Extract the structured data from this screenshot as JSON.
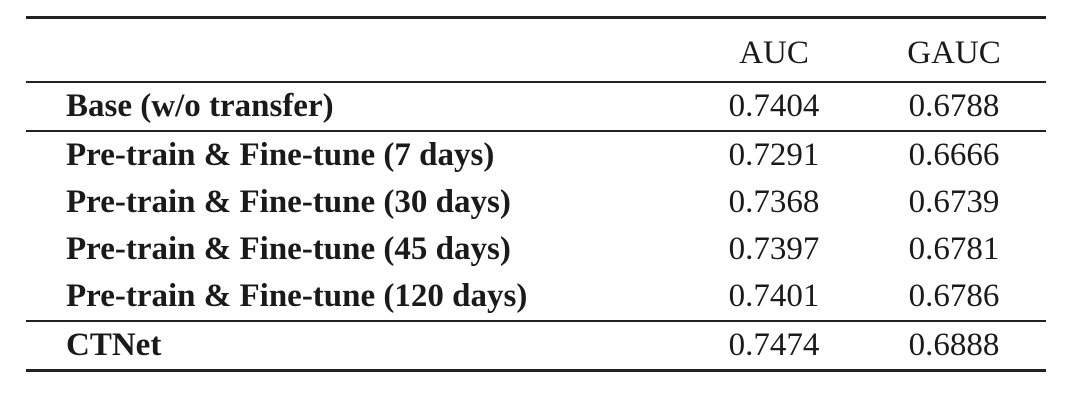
{
  "table": {
    "headers": [
      "",
      "AUC",
      "GAUC"
    ],
    "groups": [
      {
        "rows": [
          {
            "method": "Base (w/o transfer)",
            "auc": "0.7404",
            "gauc": "0.6788"
          }
        ]
      },
      {
        "rows": [
          {
            "method": "Pre-train & Fine-tune (7 days)",
            "auc": "0.7291",
            "gauc": "0.6666"
          },
          {
            "method": "Pre-train & Fine-tune (30 days)",
            "auc": "0.7368",
            "gauc": "0.6739"
          },
          {
            "method": "Pre-train & Fine-tune (45 days)",
            "auc": "0.7397",
            "gauc": "0.6781"
          },
          {
            "method": "Pre-train & Fine-tune (120 days)",
            "auc": "0.7401",
            "gauc": "0.6786"
          }
        ]
      },
      {
        "rows": [
          {
            "method": "CTNet",
            "auc": "0.7474",
            "gauc": "0.6888"
          }
        ]
      }
    ]
  }
}
